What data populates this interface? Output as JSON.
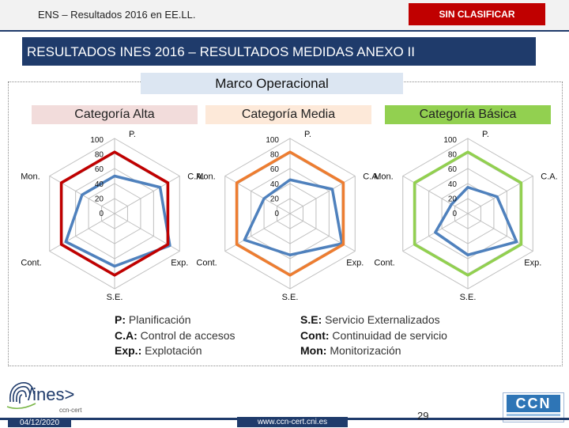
{
  "header": {
    "doc_title": "ENS – Resultados 2016 en EE.LL.",
    "classification": "SIN CLASIFICAR"
  },
  "banner": {
    "title": "RESULTADOS INES 2016 – RESULTADOS MEDIDAS ANEXO II"
  },
  "frame": {
    "title": "Marco Operacional"
  },
  "categories": [
    "Categoría Alta",
    "Categoría Media",
    "Categoría Básica"
  ],
  "radar": {
    "axes": [
      "P.",
      "C.A.",
      "Exp.",
      "S.E.",
      "Cont.",
      "Mon."
    ],
    "ticks": [
      "100",
      "80",
      "60",
      "40",
      "20",
      "0"
    ],
    "colors": [
      "#c00000",
      "#ed7d31",
      "#92d050"
    ]
  },
  "chart_data": [
    {
      "type": "radar",
      "title": "Categoría Alta",
      "categories": [
        "P.",
        "C.A.",
        "Exp.",
        "S.E.",
        "Cont.",
        "Mon."
      ],
      "range": [
        0,
        100
      ],
      "series": [
        {
          "values": [
            50,
            70,
            85,
            70,
            75,
            50
          ]
        }
      ]
    },
    {
      "type": "radar",
      "title": "Categoría Media",
      "categories": [
        "P.",
        "C.A.",
        "Exp.",
        "S.E.",
        "Cont.",
        "Mon."
      ],
      "range": [
        0,
        100
      ],
      "series": [
        {
          "values": [
            45,
            65,
            80,
            55,
            70,
            40
          ]
        }
      ]
    },
    {
      "type": "radar",
      "title": "Categoría Básica",
      "categories": [
        "P.",
        "C.A.",
        "Exp.",
        "S.E.",
        "Cont.",
        "Mon."
      ],
      "range": [
        0,
        100
      ],
      "series": [
        {
          "values": [
            35,
            45,
            75,
            55,
            50,
            25
          ]
        }
      ]
    }
  ],
  "legend_left": [
    {
      "abbr": "P:",
      "text": " Planificación"
    },
    {
      "abbr": "C.A:",
      "text": " Control de accesos"
    },
    {
      "abbr": "Exp.:",
      "text": " Explotación"
    }
  ],
  "legend_right": [
    {
      "abbr": "S.E:",
      "text": " Servicio Externalizados"
    },
    {
      "abbr": "Cont:",
      "text": " Continuidad de servicio"
    },
    {
      "abbr": "Mon:",
      "text": " Monitorización"
    }
  ],
  "logos": {
    "ines": "/ines>",
    "ines_sub": "ccn-cert",
    "ccn": "CCN"
  },
  "footer": {
    "date": "04/12/2020",
    "url": "www.ccn-cert.cni.es",
    "page": "29"
  }
}
